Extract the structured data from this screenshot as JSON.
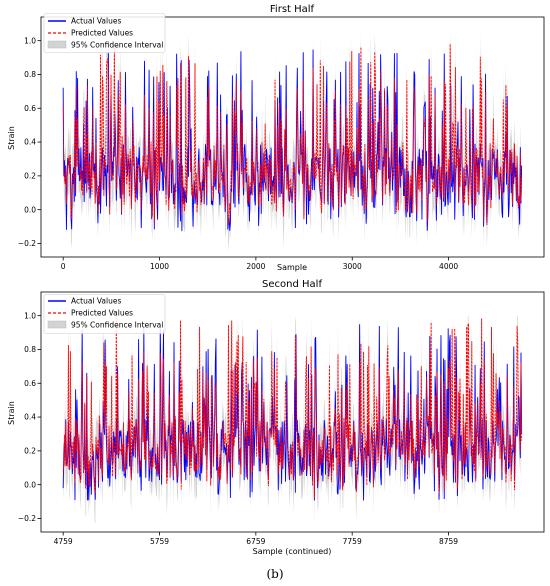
{
  "figure_caption": "(b)",
  "chart_data": [
    {
      "type": "line",
      "title": "First Half",
      "xlabel": "Sample",
      "ylabel": "Strain",
      "xlim": [
        -230,
        4990
      ],
      "ylim": [
        -0.28,
        1.14
      ],
      "xticks": [
        0,
        1000,
        2000,
        3000,
        4000
      ],
      "xtick_labels": [
        "0",
        "1000",
        "2000",
        "3000",
        "4000"
      ],
      "yticks": [
        -0.2,
        0.0,
        0.2,
        0.4,
        0.6,
        0.8,
        1.0
      ],
      "ytick_labels": [
        "−0.2",
        "0.0",
        "0.2",
        "0.4",
        "0.6",
        "0.8",
        "1.0"
      ],
      "x_range": [
        0,
        4758
      ],
      "grid": false,
      "legend_position": "upper-left",
      "series": [
        {
          "name": "Actual Values",
          "color": "#0000ff",
          "style": "solid",
          "baseline": 0.2,
          "range": [
            -0.13,
            0.95
          ]
        },
        {
          "name": "Predicted Values",
          "color": "#ff0000",
          "style": "dashed",
          "baseline": 0.2,
          "range": [
            -0.1,
            1.0
          ]
        },
        {
          "name": "95% Confidence Interval",
          "color": "#d3d3d3",
          "style": "band",
          "range": [
            -0.25,
            1.05
          ]
        }
      ]
    },
    {
      "type": "line",
      "title": "Second Half",
      "xlabel": "Sample (continued)",
      "ylabel": "Strain",
      "xlim": [
        4529,
        9750
      ],
      "ylim": [
        -0.28,
        1.14
      ],
      "xticks": [
        4759,
        5759,
        6759,
        7759,
        8759
      ],
      "xtick_labels": [
        "4759",
        "5759",
        "6759",
        "7759",
        "8759"
      ],
      "yticks": [
        -0.2,
        0.0,
        0.2,
        0.4,
        0.6,
        0.8,
        1.0
      ],
      "ytick_labels": [
        "−0.2",
        "0.0",
        "0.2",
        "0.4",
        "0.6",
        "0.8",
        "1.0"
      ],
      "x_range": [
        4759,
        9518
      ],
      "grid": false,
      "legend_position": "upper-left",
      "series": [
        {
          "name": "Actual Values",
          "color": "#0000ff",
          "style": "solid",
          "baseline": 0.2,
          "range": [
            -0.1,
            0.95
          ]
        },
        {
          "name": "Predicted Values",
          "color": "#ff0000",
          "style": "dashed",
          "baseline": 0.2,
          "range": [
            -0.08,
            1.0
          ]
        },
        {
          "name": "95% Confidence Interval",
          "color": "#d3d3d3",
          "style": "band",
          "range": [
            -0.25,
            1.0
          ]
        }
      ]
    }
  ]
}
